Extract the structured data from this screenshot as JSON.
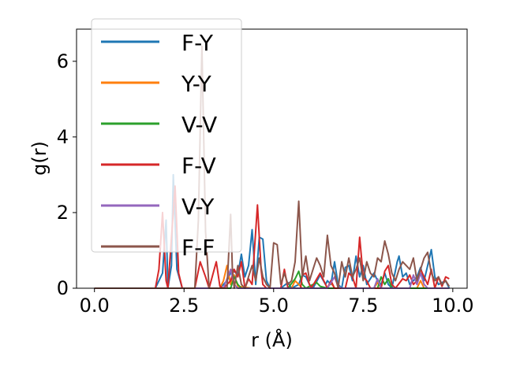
{
  "chart_data": {
    "type": "line",
    "title": "",
    "xlabel": "r (Å)",
    "ylabel": "g(r)",
    "xlim": [
      -0.5,
      10.4
    ],
    "ylim": [
      0,
      6.85
    ],
    "xticks": [
      0.0,
      2.5,
      5.0,
      7.5,
      10.0
    ],
    "xtick_labels": [
      "0.0",
      "2.5",
      "5.0",
      "7.5",
      "10.0"
    ],
    "yticks": [
      0,
      2,
      4,
      6
    ],
    "ytick_labels": [
      "0",
      "2",
      "4",
      "6"
    ],
    "grid": false,
    "legend": {
      "position": "upper-left",
      "overlaps_plot": true
    },
    "series": [
      {
        "name": "F-Y",
        "color": "#1f77b4",
        "points": [
          [
            0,
            0
          ],
          [
            1.7,
            0
          ],
          [
            1.9,
            0.4
          ],
          [
            2.0,
            1.8
          ],
          [
            2.05,
            0
          ],
          [
            2.15,
            0.6
          ],
          [
            2.2,
            3.0
          ],
          [
            2.3,
            0.5
          ],
          [
            2.45,
            0
          ],
          [
            3.5,
            0
          ],
          [
            3.7,
            0.2
          ],
          [
            3.85,
            0.5
          ],
          [
            4.0,
            0.35
          ],
          [
            4.1,
            0.9
          ],
          [
            4.2,
            0.3
          ],
          [
            4.3,
            0.6
          ],
          [
            4.4,
            1.55
          ],
          [
            4.5,
            0.1
          ],
          [
            4.6,
            1.35
          ],
          [
            4.7,
            1.3
          ],
          [
            4.8,
            0.2
          ],
          [
            4.9,
            0
          ],
          [
            5.2,
            0
          ],
          [
            5.4,
            0.15
          ],
          [
            5.5,
            0
          ],
          [
            5.7,
            0.1
          ],
          [
            5.8,
            0.35
          ],
          [
            5.9,
            0.3
          ],
          [
            6.0,
            0.1
          ],
          [
            6.1,
            0
          ],
          [
            6.3,
            0.35
          ],
          [
            6.45,
            0.1
          ],
          [
            6.5,
            0.2
          ],
          [
            6.6,
            0.1
          ],
          [
            6.7,
            0.7
          ],
          [
            6.8,
            0.1
          ],
          [
            6.9,
            0
          ],
          [
            7.0,
            0.55
          ],
          [
            7.1,
            0.6
          ],
          [
            7.2,
            0.2
          ],
          [
            7.3,
            0.85
          ],
          [
            7.4,
            0.3
          ],
          [
            7.5,
            0.6
          ],
          [
            7.6,
            0.1
          ],
          [
            7.8,
            0.4
          ],
          [
            7.9,
            0.2
          ],
          [
            8.0,
            0.1
          ],
          [
            8.1,
            0.4
          ],
          [
            8.2,
            0.1
          ],
          [
            8.3,
            0
          ],
          [
            8.45,
            0.7
          ],
          [
            8.5,
            0.85
          ],
          [
            8.6,
            0.3
          ],
          [
            8.7,
            0.4
          ],
          [
            8.8,
            0.1
          ],
          [
            9.0,
            0.3
          ],
          [
            9.1,
            0.55
          ],
          [
            9.2,
            0.2
          ],
          [
            9.3,
            0.6
          ],
          [
            9.4,
            1.02
          ],
          [
            9.5,
            0.3
          ],
          [
            9.6,
            0.1
          ],
          [
            9.8,
            0.2
          ],
          [
            9.9,
            0
          ]
        ]
      },
      {
        "name": "Y-Y",
        "color": "#ff7f0e",
        "points": [
          [
            0,
            0
          ],
          [
            3.5,
            0
          ],
          [
            3.6,
            0.2
          ],
          [
            3.7,
            0.6
          ],
          [
            3.8,
            0.1
          ],
          [
            3.9,
            0.35
          ],
          [
            4.0,
            0.05
          ],
          [
            4.4,
            0
          ],
          [
            5.5,
            0
          ],
          [
            5.6,
            0.2
          ],
          [
            5.7,
            0.1
          ],
          [
            5.8,
            0
          ],
          [
            6.5,
            0
          ],
          [
            6.6,
            0.15
          ],
          [
            6.7,
            0
          ],
          [
            7.8,
            0
          ],
          [
            7.9,
            0.15
          ],
          [
            8.0,
            0
          ],
          [
            9.0,
            0
          ],
          [
            9.1,
            0.2
          ],
          [
            9.2,
            0
          ],
          [
            9.9,
            0
          ]
        ]
      },
      {
        "name": "V-V",
        "color": "#2ca02c",
        "points": [
          [
            0,
            0
          ],
          [
            3.8,
            0
          ],
          [
            3.9,
            0.3
          ],
          [
            4.0,
            0.1
          ],
          [
            4.1,
            0
          ],
          [
            5.4,
            0
          ],
          [
            5.6,
            0.25
          ],
          [
            5.7,
            0.45
          ],
          [
            5.8,
            0.1
          ],
          [
            5.9,
            0
          ],
          [
            6.2,
            0.15
          ],
          [
            6.3,
            0.05
          ],
          [
            6.5,
            0
          ],
          [
            7.9,
            0
          ],
          [
            8.0,
            0.3
          ],
          [
            8.1,
            0.1
          ],
          [
            8.2,
            0.25
          ],
          [
            8.3,
            0
          ],
          [
            9.9,
            0
          ]
        ]
      },
      {
        "name": "F-V",
        "color": "#d62728",
        "points": [
          [
            0,
            0
          ],
          [
            1.7,
            0
          ],
          [
            1.8,
            0.5
          ],
          [
            1.9,
            2.0
          ],
          [
            2.0,
            0.2
          ],
          [
            2.05,
            0
          ],
          [
            2.25,
            2.7
          ],
          [
            2.35,
            0.4
          ],
          [
            2.45,
            0
          ],
          [
            2.8,
            0
          ],
          [
            2.95,
            0.7
          ],
          [
            3.1,
            0.3
          ],
          [
            3.2,
            0
          ],
          [
            3.4,
            0.7
          ],
          [
            3.5,
            0.05
          ],
          [
            3.6,
            0
          ],
          [
            3.8,
            0.2
          ],
          [
            3.9,
            0.5
          ],
          [
            4.0,
            0.3
          ],
          [
            4.1,
            0.7
          ],
          [
            4.2,
            0
          ],
          [
            4.3,
            0.25
          ],
          [
            4.4,
            0.1
          ],
          [
            4.55,
            2.2
          ],
          [
            4.65,
            0.5
          ],
          [
            4.7,
            0.1
          ],
          [
            4.8,
            0
          ],
          [
            5.2,
            0
          ],
          [
            5.3,
            0.5
          ],
          [
            5.4,
            0
          ],
          [
            5.75,
            0
          ],
          [
            5.8,
            0.35
          ],
          [
            5.9,
            0.4
          ],
          [
            6.0,
            0.1
          ],
          [
            6.05,
            0
          ],
          [
            6.3,
            0.4
          ],
          [
            6.4,
            0.2
          ],
          [
            6.5,
            0
          ],
          [
            6.6,
            0.2
          ],
          [
            6.7,
            0
          ],
          [
            7.0,
            0
          ],
          [
            7.1,
            0.4
          ],
          [
            7.2,
            0.3
          ],
          [
            7.3,
            0
          ],
          [
            7.4,
            1.35
          ],
          [
            7.5,
            0.3
          ],
          [
            7.6,
            0.2
          ],
          [
            7.7,
            0
          ],
          [
            8.0,
            0
          ],
          [
            8.1,
            0.45
          ],
          [
            8.2,
            0.6
          ],
          [
            8.3,
            0.1
          ],
          [
            8.4,
            0
          ],
          [
            8.6,
            0.25
          ],
          [
            8.7,
            0.2
          ],
          [
            8.8,
            0.35
          ],
          [
            8.9,
            0.1
          ],
          [
            9.0,
            0.2
          ],
          [
            9.1,
            0.5
          ],
          [
            9.2,
            0.3
          ],
          [
            9.3,
            0.1
          ],
          [
            9.4,
            0.5
          ],
          [
            9.5,
            0
          ],
          [
            9.6,
            0.3
          ],
          [
            9.7,
            0.05
          ],
          [
            9.8,
            0.3
          ],
          [
            9.9,
            0.25
          ]
        ]
      },
      {
        "name": "V-Y",
        "color": "#9467bd",
        "points": [
          [
            0,
            0
          ],
          [
            3.6,
            0
          ],
          [
            3.7,
            0.25
          ],
          [
            3.8,
            0.5
          ],
          [
            3.9,
            0.1
          ],
          [
            4.0,
            0
          ],
          [
            6.5,
            0
          ],
          [
            6.6,
            0.15
          ],
          [
            6.7,
            0.3
          ],
          [
            6.8,
            0.05
          ],
          [
            6.9,
            0
          ],
          [
            7.8,
            0
          ],
          [
            7.9,
            0.25
          ],
          [
            8.0,
            0
          ],
          [
            8.8,
            0
          ],
          [
            8.9,
            0.35
          ],
          [
            9.0,
            0.1
          ],
          [
            9.1,
            0.4
          ],
          [
            9.2,
            0.1
          ],
          [
            9.3,
            0
          ],
          [
            9.9,
            0
          ]
        ]
      },
      {
        "name": "F-F",
        "color": "#8c564b",
        "points": [
          [
            0,
            0
          ],
          [
            2.8,
            0
          ],
          [
            2.9,
            1.8
          ],
          [
            3.0,
            6.4
          ],
          [
            3.1,
            1.5
          ],
          [
            3.2,
            0
          ],
          [
            3.7,
            0
          ],
          [
            3.8,
            1.95
          ],
          [
            3.85,
            0.5
          ],
          [
            3.9,
            0
          ],
          [
            4.0,
            0.6
          ],
          [
            4.1,
            0.1
          ],
          [
            4.2,
            0
          ],
          [
            4.4,
            0.6
          ],
          [
            4.5,
            0.2
          ],
          [
            4.6,
            0.8
          ],
          [
            4.7,
            0.3
          ],
          [
            4.8,
            0.1
          ],
          [
            4.9,
            0
          ],
          [
            5.0,
            1.2
          ],
          [
            5.1,
            1.15
          ],
          [
            5.2,
            0.1
          ],
          [
            5.3,
            0.4
          ],
          [
            5.4,
            0.1
          ],
          [
            5.5,
            0.2
          ],
          [
            5.6,
            0.7
          ],
          [
            5.7,
            2.3
          ],
          [
            5.8,
            0.3
          ],
          [
            5.9,
            0.85
          ],
          [
            6.0,
            0.2
          ],
          [
            6.1,
            0.5
          ],
          [
            6.2,
            0.8
          ],
          [
            6.3,
            0.6
          ],
          [
            6.4,
            0.3
          ],
          [
            6.5,
            1.4
          ],
          [
            6.6,
            0.6
          ],
          [
            6.7,
            0.4
          ],
          [
            6.8,
            0
          ],
          [
            6.9,
            0.7
          ],
          [
            7.0,
            0.3
          ],
          [
            7.1,
            0.8
          ],
          [
            7.2,
            0.3
          ],
          [
            7.3,
            0.5
          ],
          [
            7.4,
            0.8
          ],
          [
            7.5,
            0.2
          ],
          [
            7.6,
            0.7
          ],
          [
            7.7,
            0.4
          ],
          [
            7.8,
            0.3
          ],
          [
            7.9,
            0.8
          ],
          [
            8.0,
            0.7
          ],
          [
            8.1,
            1.25
          ],
          [
            8.2,
            0.9
          ],
          [
            8.3,
            0.4
          ],
          [
            8.4,
            0.2
          ],
          [
            8.5,
            0.5
          ],
          [
            8.6,
            0.7
          ],
          [
            8.7,
            0.6
          ],
          [
            8.8,
            0.5
          ],
          [
            8.9,
            0.8
          ],
          [
            9.0,
            0.2
          ],
          [
            9.1,
            0.5
          ],
          [
            9.2,
            0.8
          ],
          [
            9.3,
            0.95
          ],
          [
            9.4,
            0.4
          ],
          [
            9.5,
            0.2
          ],
          [
            9.6,
            0.3
          ],
          [
            9.7,
            0.1
          ],
          [
            9.8,
            0.2
          ],
          [
            9.9,
            0.05
          ]
        ]
      }
    ]
  }
}
